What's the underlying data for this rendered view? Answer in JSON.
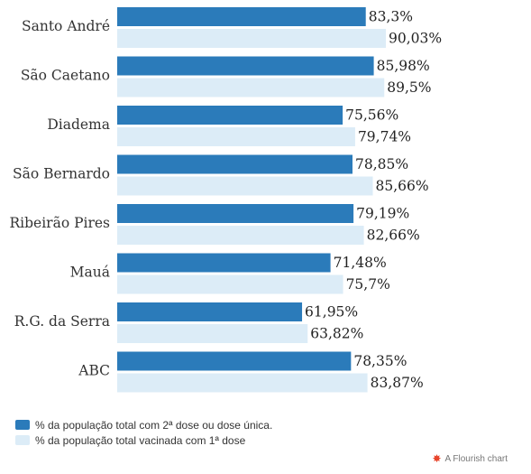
{
  "chart_data": {
    "type": "bar",
    "orientation": "horizontal",
    "categories": [
      "Santo André",
      "São Caetano",
      "Diadema",
      "São Bernardo",
      "Ribeirão Pires",
      "Mauá",
      "R.G. da Serra",
      "ABC"
    ],
    "series": [
      {
        "name": "% da população total com 2ª dose ou dose única.",
        "color": "#2b7bba",
        "values": [
          83.3,
          85.98,
          75.56,
          78.85,
          79.19,
          71.48,
          61.95,
          78.35
        ],
        "labels": [
          "83,3%",
          "85,98%",
          "75,56%",
          "78,85%",
          "79,19%",
          "71,48%",
          "61,95%",
          "78,35%"
        ]
      },
      {
        "name": "% da população total vacinada com 1ª dose",
        "color": "#dcecf7",
        "values": [
          90.03,
          89.5,
          79.74,
          85.66,
          82.66,
          75.7,
          63.82,
          83.87
        ],
        "labels": [
          "90,03%",
          "89,5%",
          "79,74%",
          "85,66%",
          "82,66%",
          "75,7%",
          "63,82%",
          "83,87%"
        ]
      }
    ],
    "xlim": [
      0,
      100
    ],
    "legend_position": "bottom-left",
    "grid": false
  },
  "legend": {
    "items": [
      {
        "label": "% da população total com 2ª dose ou dose única.",
        "color": "#2b7bba"
      },
      {
        "label": "% da população total vacinada com 1ª dose",
        "color": "#dcecf7"
      }
    ]
  },
  "credit": {
    "icon": "flourish-logo-icon",
    "text": "A Flourish chart"
  }
}
